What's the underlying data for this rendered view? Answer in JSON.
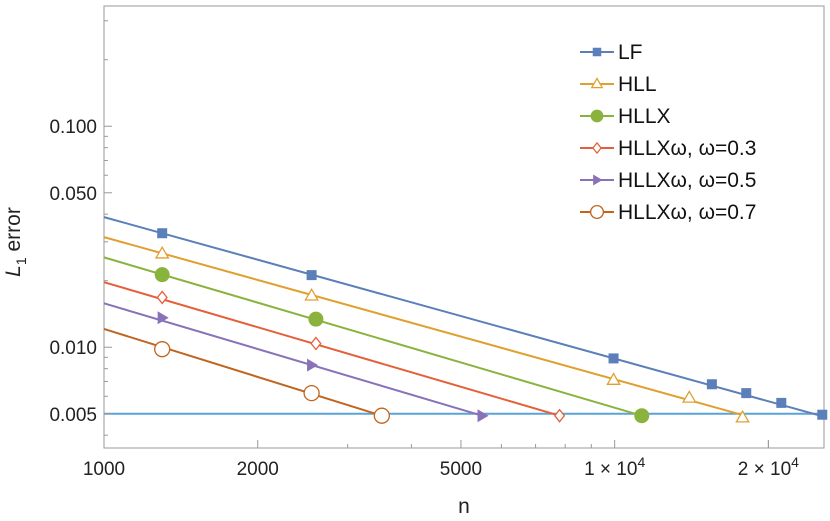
{
  "chart_data": {
    "type": "line",
    "title": "",
    "xlabel": "n",
    "ylabel": "L1 error",
    "ylabel_main": "L",
    "ylabel_sub": "1",
    "ylabel_rest": " error",
    "xscale": "log",
    "yscale": "log",
    "xlim": [
      1000,
      25700
    ],
    "ylim": [
      0.0035,
      0.35
    ],
    "grid": false,
    "legend_position": "top-right",
    "x_ticks": [
      {
        "value": 1000,
        "label": "1000"
      },
      {
        "value": 2000,
        "label": "2000"
      },
      {
        "value": 5000,
        "label": "5000"
      },
      {
        "value": 10000,
        "label": "1 × 10",
        "exp": "4"
      },
      {
        "value": 20000,
        "label": "2 × 10",
        "exp": "4"
      }
    ],
    "y_ticks": [
      {
        "value": 0.005,
        "label": "0.005"
      },
      {
        "value": 0.01,
        "label": "0.010"
      },
      {
        "value": 0.05,
        "label": "0.050"
      },
      {
        "value": 0.1,
        "label": "0.100"
      }
    ],
    "reference_line": {
      "y": 0.005,
      "color": "#5aa3d8"
    },
    "series": [
      {
        "name": "LF",
        "color": "#5b7fb8",
        "marker": "square",
        "line": [
          [
            1000,
            0.0388
          ],
          [
            25700,
            0.00485
          ]
        ],
        "points": [
          [
            1300,
            0.0328
          ],
          [
            2550,
            0.0212
          ],
          [
            9950,
            0.0089
          ],
          [
            15500,
            0.0068
          ],
          [
            18100,
            0.0062
          ],
          [
            21200,
            0.0056
          ],
          [
            25500,
            0.00495
          ]
        ]
      },
      {
        "name": "HLL",
        "color": "#e0a030",
        "marker": "triangle",
        "line": [
          [
            1000,
            0.0315
          ],
          [
            18000,
            0.0049
          ]
        ],
        "points": [
          [
            1300,
            0.0265
          ],
          [
            2550,
            0.0171
          ],
          [
            9950,
            0.0071
          ],
          [
            14000,
            0.0059
          ],
          [
            17800,
            0.0048
          ]
        ]
      },
      {
        "name": "HLLX",
        "color": "#8ab33d",
        "marker": "circle-filled",
        "line": [
          [
            1000,
            0.0255
          ],
          [
            11300,
            0.0049
          ]
        ],
        "points": [
          [
            1300,
            0.0213
          ],
          [
            2600,
            0.0134
          ],
          [
            11300,
            0.0049
          ]
        ]
      },
      {
        "name": "HLLXω, ω=0.3",
        "color": "#e5603a",
        "marker": "diamond",
        "line": [
          [
            1000,
            0.0197
          ],
          [
            7800,
            0.0049
          ]
        ],
        "points": [
          [
            1300,
            0.0168
          ],
          [
            2600,
            0.0104
          ],
          [
            7800,
            0.0049
          ]
        ]
      },
      {
        "name": "HLLXω, ω=0.5",
        "color": "#8a72b8",
        "marker": "triangle-right",
        "line": [
          [
            1000,
            0.0158
          ],
          [
            5500,
            0.0049
          ]
        ],
        "points": [
          [
            1300,
            0.0136
          ],
          [
            2550,
            0.0083
          ],
          [
            5500,
            0.0049
          ]
        ]
      },
      {
        "name": "HLLXω, ω=0.7",
        "color": "#c0641e",
        "marker": "circle-open",
        "line": [
          [
            1000,
            0.0121
          ],
          [
            3500,
            0.0049
          ]
        ],
        "points": [
          [
            1300,
            0.0098
          ],
          [
            2550,
            0.0062
          ],
          [
            3500,
            0.0049
          ]
        ]
      }
    ]
  }
}
